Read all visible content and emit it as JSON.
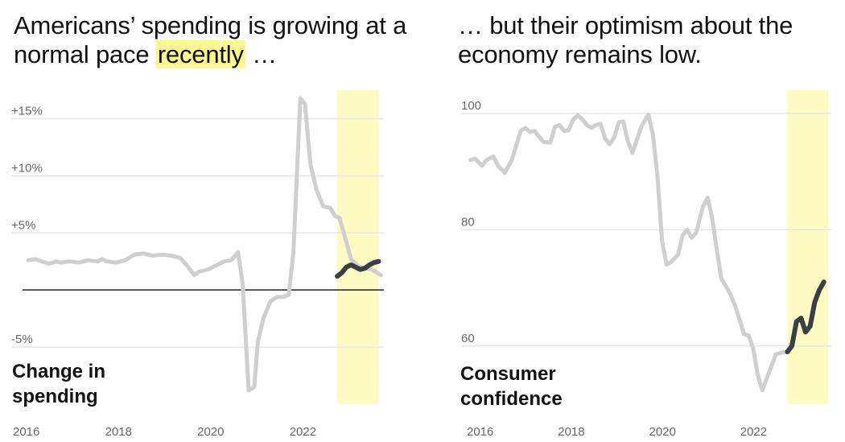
{
  "panels": {
    "left": {
      "headline_before": "Americans’ spending is growing at a normal pace ",
      "headline_highlight": "recently",
      "headline_after": " …"
    },
    "right": {
      "headline": "… but their optimism about the economy remains low."
    }
  },
  "colors": {
    "highlight_band": "#fefbc2",
    "historic_line": "#cfcfcf",
    "recent_line": "#3b3f45",
    "zero_line": "#222222",
    "grid": "#e6e6e6"
  },
  "chart_data": [
    {
      "type": "line",
      "ylabel_lines": [
        "Change in",
        "spending"
      ],
      "xlim": [
        2016,
        2024.1
      ],
      "ylim": [
        -10,
        17.5
      ],
      "y_ticks": [
        {
          "value": 15,
          "label": "+15%"
        },
        {
          "value": 10,
          "label": "+10%"
        },
        {
          "value": 5,
          "label": "+5%"
        },
        {
          "value": -5,
          "label": "-5%"
        }
      ],
      "x_ticks": [
        {
          "value": 2016,
          "label": "2016"
        },
        {
          "value": 2018,
          "label": "2018"
        },
        {
          "value": 2020,
          "label": "2020"
        },
        {
          "value": 2022,
          "label": "2022"
        }
      ],
      "baseline": 0,
      "highlight_range": [
        2023.0,
        2023.9
      ],
      "series": [
        {
          "style": "historic",
          "points": [
            [
              2016.3,
              2.6
            ],
            [
              2016.45,
              2.7
            ],
            [
              2016.6,
              2.5
            ],
            [
              2016.75,
              2.3
            ],
            [
              2016.9,
              2.5
            ],
            [
              2017.0,
              2.4
            ],
            [
              2017.2,
              2.5
            ],
            [
              2017.4,
              2.4
            ],
            [
              2017.6,
              2.6
            ],
            [
              2017.8,
              2.5
            ],
            [
              2017.9,
              2.7
            ],
            [
              2018.0,
              2.5
            ],
            [
              2018.2,
              2.4
            ],
            [
              2018.4,
              2.6
            ],
            [
              2018.6,
              3.1
            ],
            [
              2018.8,
              3.2
            ],
            [
              2019.0,
              3.0
            ],
            [
              2019.2,
              3.1
            ],
            [
              2019.4,
              3.0
            ],
            [
              2019.6,
              2.8
            ],
            [
              2019.75,
              2.1
            ],
            [
              2019.9,
              1.3
            ],
            [
              2020.0,
              1.6
            ],
            [
              2020.2,
              1.8
            ],
            [
              2020.4,
              2.2
            ],
            [
              2020.55,
              2.5
            ],
            [
              2020.7,
              2.6
            ],
            [
              2020.85,
              3.3
            ],
            [
              2020.95,
              0.5
            ],
            [
              2021.08,
              -8.8
            ],
            [
              2021.2,
              -8.5
            ],
            [
              2021.28,
              -4.5
            ],
            [
              2021.4,
              -2.5
            ],
            [
              2021.55,
              -1.0
            ],
            [
              2021.7,
              -0.6
            ],
            [
              2021.85,
              -0.6
            ],
            [
              2021.95,
              -0.4
            ],
            [
              2022.05,
              3.3
            ],
            [
              2022.2,
              16.8
            ],
            [
              2022.3,
              16.3
            ],
            [
              2022.42,
              11.0
            ],
            [
              2022.55,
              8.8
            ],
            [
              2022.7,
              7.3
            ],
            [
              2022.85,
              7.2
            ],
            [
              2022.95,
              6.5
            ],
            [
              2023.05,
              6.3
            ],
            [
              2023.15,
              4.9
            ],
            [
              2023.3,
              2.7
            ],
            [
              2023.45,
              2.1
            ],
            [
              2023.6,
              1.9
            ],
            [
              2023.75,
              1.8
            ],
            [
              2023.95,
              1.3
            ]
          ]
        },
        {
          "style": "recent",
          "points": [
            [
              2023.0,
              1.2
            ],
            [
              2023.1,
              1.5
            ],
            [
              2023.2,
              2.0
            ],
            [
              2023.3,
              2.2
            ],
            [
              2023.4,
              2.0
            ],
            [
              2023.5,
              1.8
            ],
            [
              2023.6,
              1.9
            ],
            [
              2023.7,
              2.2
            ],
            [
              2023.8,
              2.4
            ],
            [
              2023.9,
              2.5
            ]
          ]
        }
      ]
    },
    {
      "type": "line",
      "ylabel_lines": [
        "Consumer",
        "confidence"
      ],
      "xlim": [
        2016,
        2024.0
      ],
      "ylim": [
        50,
        104
      ],
      "y_ticks": [
        {
          "value": 100,
          "label": "100"
        },
        {
          "value": 80,
          "label": "80"
        },
        {
          "value": 60,
          "label": "60"
        }
      ],
      "x_ticks": [
        {
          "value": 2016,
          "label": "2016"
        },
        {
          "value": 2018,
          "label": "2018"
        },
        {
          "value": 2020,
          "label": "2020"
        },
        {
          "value": 2022,
          "label": "2022"
        }
      ],
      "highlight_range": [
        2023.0,
        2023.9
      ],
      "series": [
        {
          "style": "historic",
          "points": [
            [
              2016.05,
              92.0
            ],
            [
              2016.15,
              92.2
            ],
            [
              2016.3,
              91.0
            ],
            [
              2016.4,
              92.0
            ],
            [
              2016.55,
              92.6
            ],
            [
              2016.65,
              91.0
            ],
            [
              2016.8,
              89.8
            ],
            [
              2016.95,
              91.9
            ],
            [
              2017.05,
              94.5
            ],
            [
              2017.15,
              97.0
            ],
            [
              2017.25,
              97.5
            ],
            [
              2017.35,
              96.8
            ],
            [
              2017.45,
              97.0
            ],
            [
              2017.55,
              96.0
            ],
            [
              2017.65,
              95.1
            ],
            [
              2017.8,
              95.0
            ],
            [
              2017.9,
              97.7
            ],
            [
              2018.0,
              98.0
            ],
            [
              2018.1,
              97.0
            ],
            [
              2018.2,
              97.1
            ],
            [
              2018.3,
              98.9
            ],
            [
              2018.4,
              99.7
            ],
            [
              2018.5,
              99.0
            ],
            [
              2018.6,
              98.0
            ],
            [
              2018.7,
              97.5
            ],
            [
              2018.8,
              98.0
            ],
            [
              2018.9,
              98.2
            ],
            [
              2019.0,
              95.7
            ],
            [
              2019.1,
              94.7
            ],
            [
              2019.2,
              95.9
            ],
            [
              2019.3,
              98.5
            ],
            [
              2019.4,
              98.6
            ],
            [
              2019.5,
              95.2
            ],
            [
              2019.6,
              93.2
            ],
            [
              2019.7,
              95.5
            ],
            [
              2019.8,
              97.8
            ],
            [
              2019.95,
              99.8
            ],
            [
              2020.05,
              96.4
            ],
            [
              2020.15,
              89.1
            ],
            [
              2020.25,
              78.0
            ],
            [
              2020.35,
              74.0
            ],
            [
              2020.45,
              74.5
            ],
            [
              2020.6,
              75.7
            ],
            [
              2020.7,
              79.0
            ],
            [
              2020.8,
              80.0
            ],
            [
              2020.9,
              78.6
            ],
            [
              2021.0,
              79.5
            ],
            [
              2021.15,
              84.0
            ],
            [
              2021.25,
              85.5
            ],
            [
              2021.35,
              82.0
            ],
            [
              2021.45,
              76.7
            ],
            [
              2021.55,
              71.6
            ],
            [
              2021.65,
              70.3
            ],
            [
              2021.75,
              68.9
            ],
            [
              2021.85,
              67.0
            ],
            [
              2021.95,
              64.6
            ],
            [
              2022.05,
              62.0
            ],
            [
              2022.15,
              61.8
            ],
            [
              2022.25,
              59.6
            ],
            [
              2022.35,
              55.0
            ],
            [
              2022.45,
              52.4
            ],
            [
              2022.6,
              55.5
            ],
            [
              2022.75,
              58.6
            ],
            [
              2022.95,
              59.0
            ]
          ]
        },
        {
          "style": "recent",
          "points": [
            [
              2023.0,
              59.0
            ],
            [
              2023.1,
              60.0
            ],
            [
              2023.2,
              64.2
            ],
            [
              2023.3,
              64.8
            ],
            [
              2023.4,
              62.4
            ],
            [
              2023.5,
              63.4
            ],
            [
              2023.6,
              67.5
            ],
            [
              2023.7,
              69.6
            ],
            [
              2023.8,
              71.0
            ]
          ]
        }
      ]
    }
  ]
}
